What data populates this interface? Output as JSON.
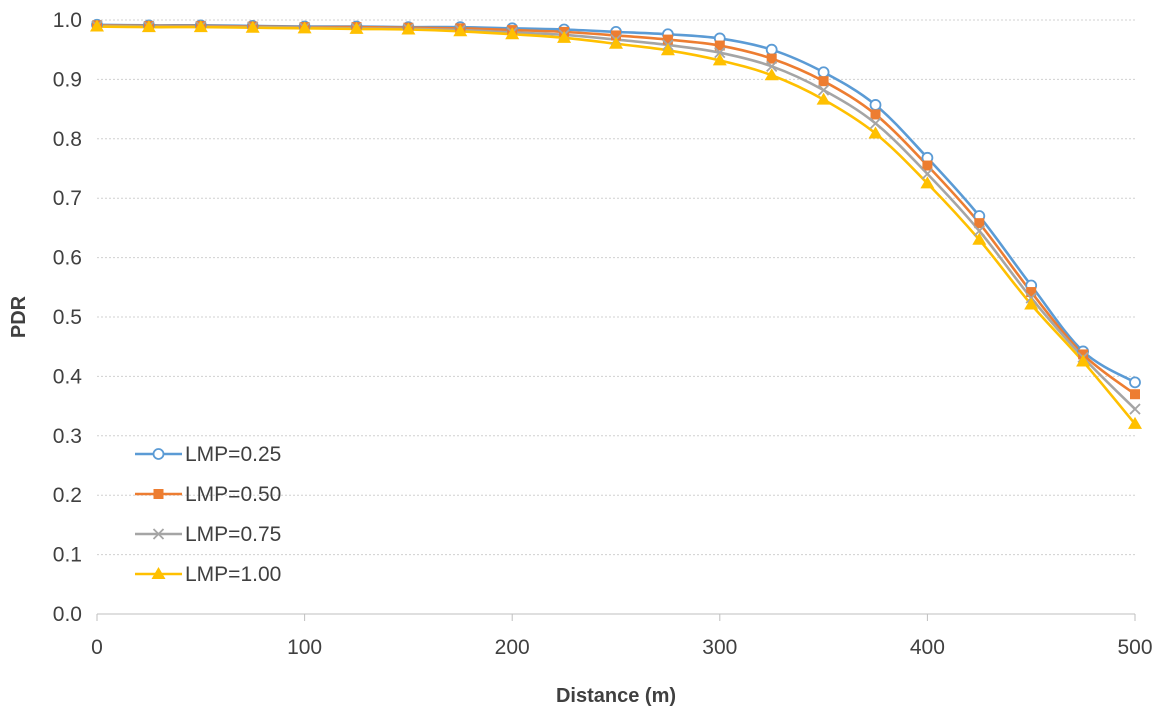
{
  "chart_data": {
    "type": "line",
    "title": "",
    "xlabel": "Distance (m)",
    "ylabel": "PDR",
    "xlim": [
      0,
      500
    ],
    "ylim": [
      0.0,
      1.0
    ],
    "x_ticks": [
      0,
      100,
      200,
      300,
      400,
      500
    ],
    "x_tick_labels": [
      "0",
      "100",
      "200",
      "300",
      "400",
      "500"
    ],
    "y_ticks": [
      0.0,
      0.1,
      0.2,
      0.3,
      0.4,
      0.5,
      0.6,
      0.7,
      0.8,
      0.9,
      1.0
    ],
    "y_tick_labels": [
      "0.0",
      "0.1",
      "0.2",
      "0.3",
      "0.4",
      "0.5",
      "0.6",
      "0.7",
      "0.8",
      "0.9",
      "1.0"
    ],
    "grid": true,
    "legend_position": "bottom-left",
    "x": [
      0,
      25,
      50,
      75,
      100,
      125,
      150,
      175,
      200,
      225,
      250,
      275,
      300,
      325,
      350,
      375,
      400,
      425,
      450,
      475,
      500
    ],
    "series": [
      {
        "name": "LMP=0.25",
        "color": "#5b9bd5",
        "marker": "circle-open",
        "values": [
          0.992,
          0.991,
          0.991,
          0.99,
          0.989,
          0.989,
          0.988,
          0.988,
          0.986,
          0.984,
          0.98,
          0.976,
          0.969,
          0.95,
          0.912,
          0.857,
          0.768,
          0.67,
          0.553,
          0.442,
          0.39
        ]
      },
      {
        "name": "LMP=0.50",
        "color": "#ed7d31",
        "marker": "square",
        "values": [
          0.991,
          0.99,
          0.99,
          0.989,
          0.988,
          0.988,
          0.987,
          0.986,
          0.983,
          0.98,
          0.974,
          0.967,
          0.957,
          0.935,
          0.897,
          0.841,
          0.755,
          0.658,
          0.542,
          0.437,
          0.37
        ]
      },
      {
        "name": "LMP=0.75",
        "color": "#a5a5a5",
        "marker": "x",
        "values": [
          0.99,
          0.989,
          0.989,
          0.988,
          0.987,
          0.986,
          0.985,
          0.983,
          0.979,
          0.975,
          0.967,
          0.958,
          0.945,
          0.922,
          0.882,
          0.826,
          0.741,
          0.645,
          0.532,
          0.432,
          0.345
        ]
      },
      {
        "name": "LMP=1.00",
        "color": "#ffc000",
        "marker": "triangle",
        "values": [
          0.989,
          0.988,
          0.988,
          0.987,
          0.986,
          0.985,
          0.984,
          0.981,
          0.976,
          0.97,
          0.96,
          0.949,
          0.932,
          0.907,
          0.866,
          0.809,
          0.725,
          0.63,
          0.521,
          0.425,
          0.32
        ]
      }
    ]
  }
}
